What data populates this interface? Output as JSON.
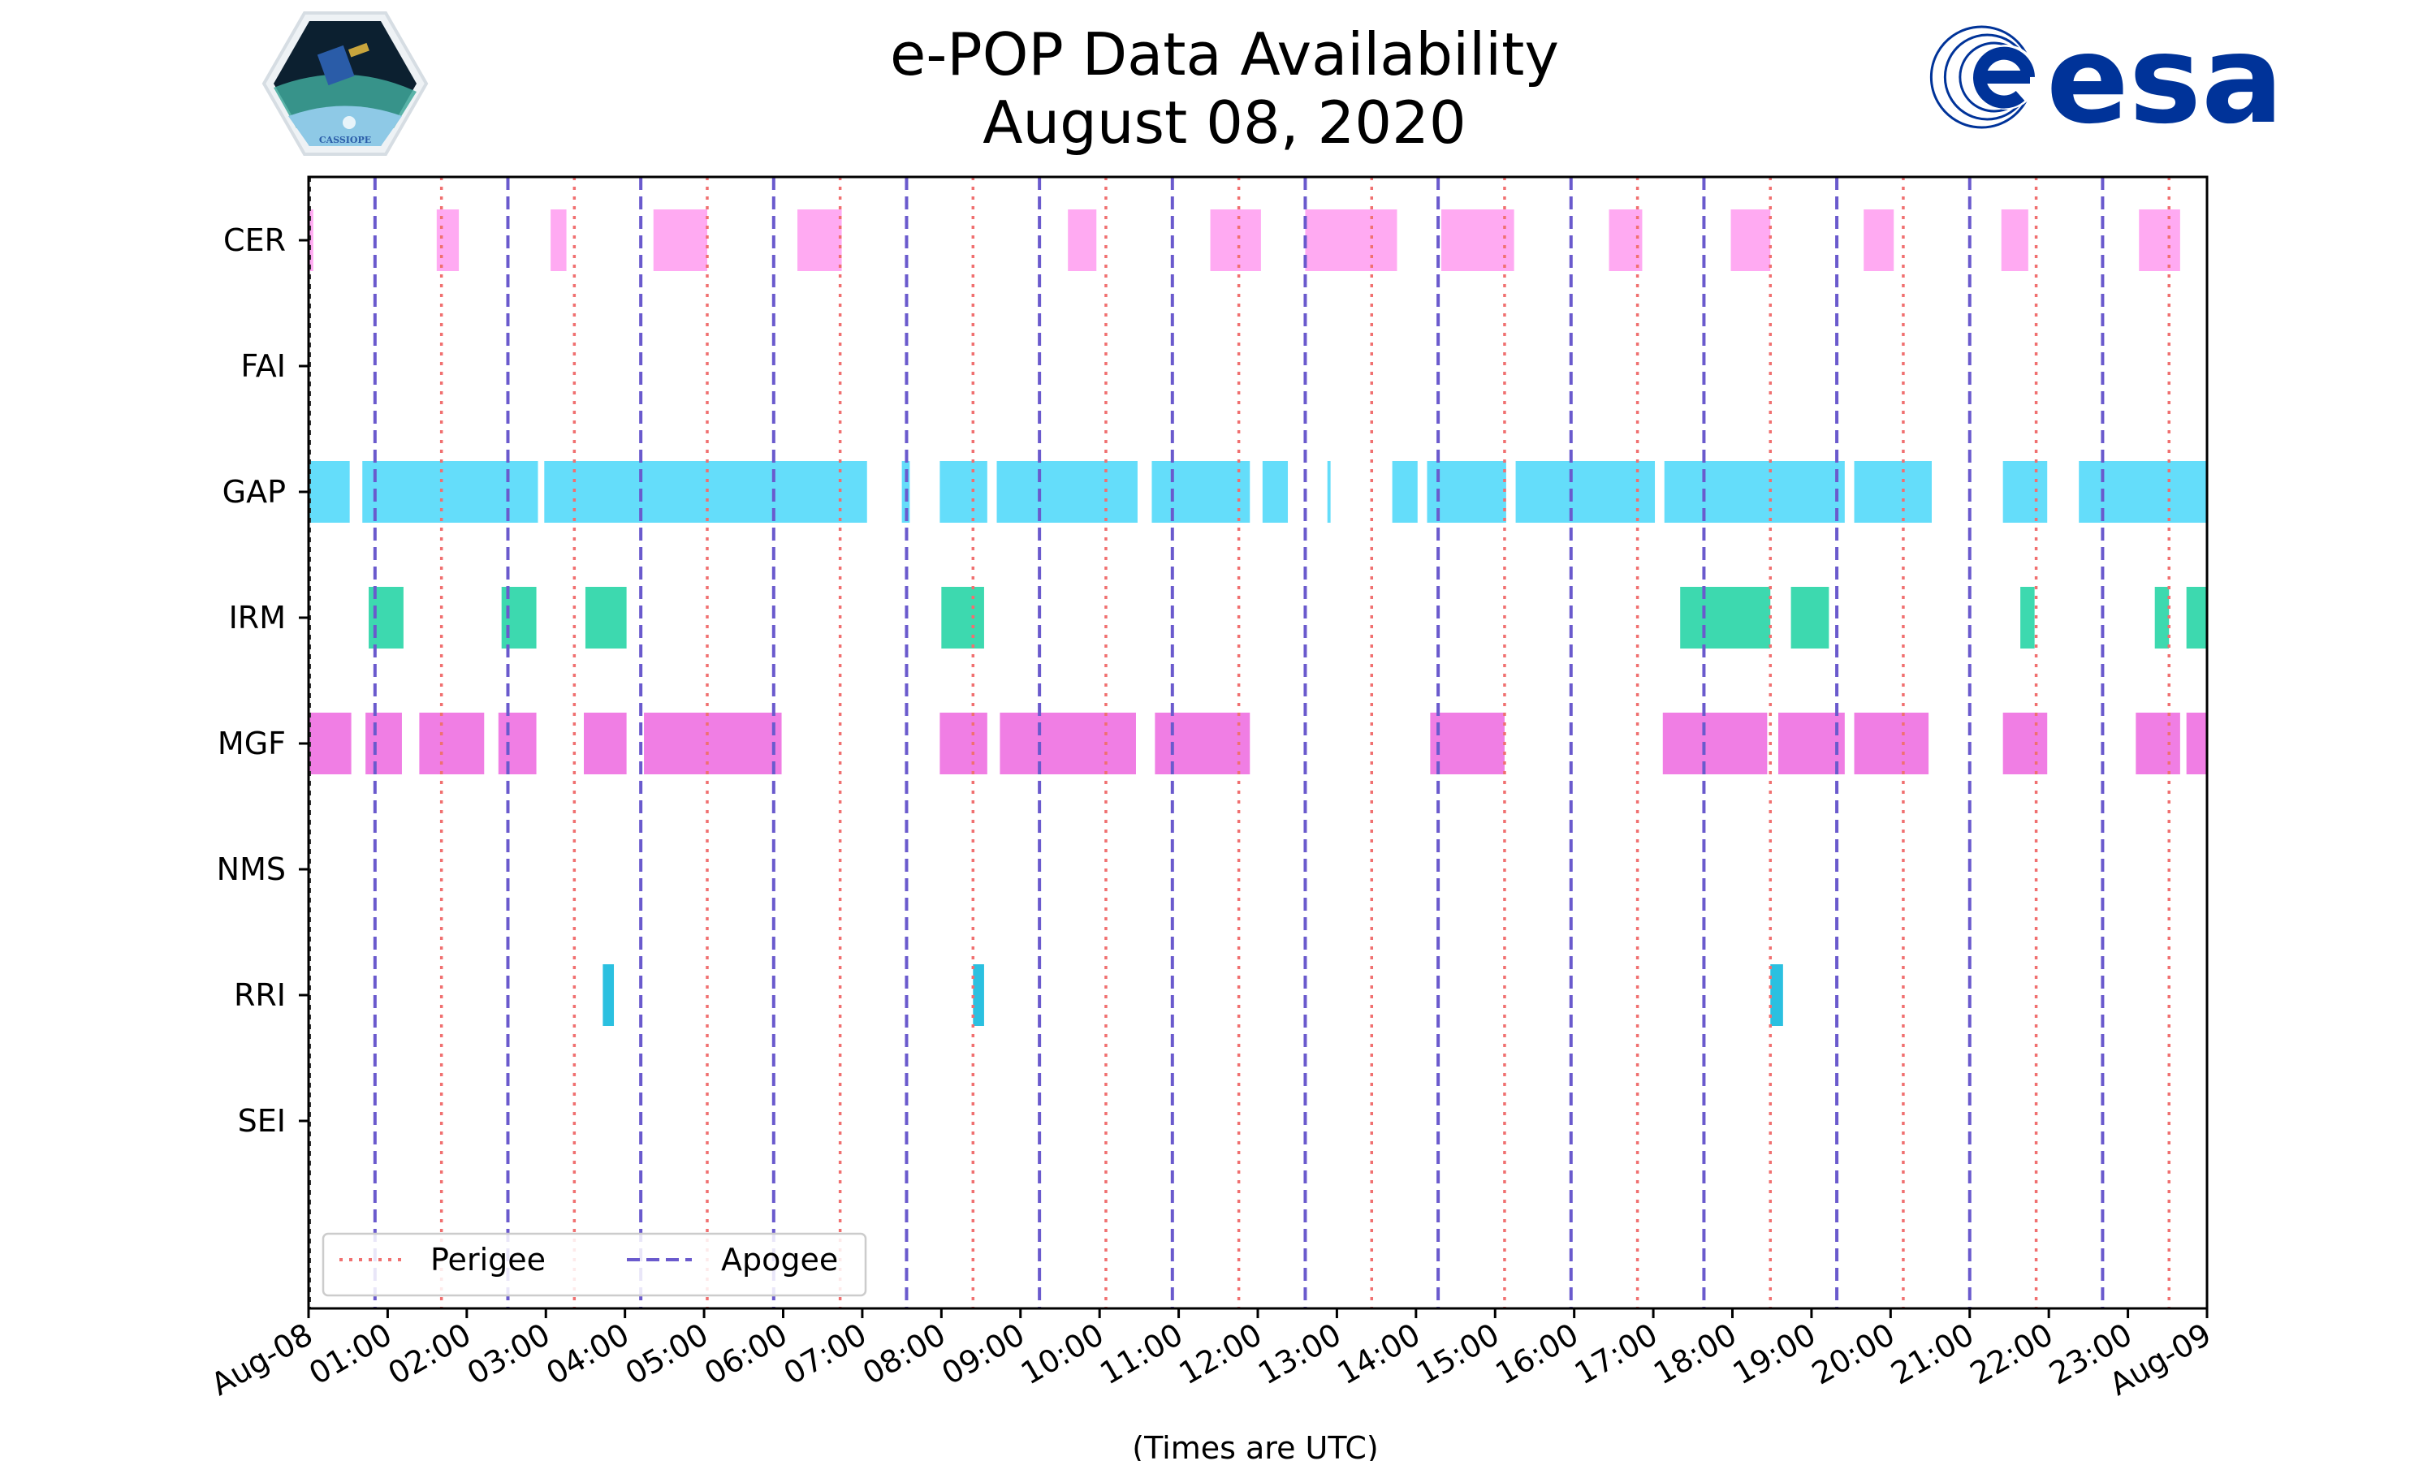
{
  "chart_data": {
    "type": "timeline",
    "title": "e-POP Data Availability",
    "subtitle": "August 08, 2020",
    "xlabel": "(Times are UTC)",
    "xlim": [
      0,
      24
    ],
    "tick_labels": [
      "Aug-08",
      "01:00",
      "02:00",
      "03:00",
      "04:00",
      "05:00",
      "06:00",
      "07:00",
      "08:00",
      "09:00",
      "10:00",
      "11:00",
      "12:00",
      "13:00",
      "14:00",
      "15:00",
      "16:00",
      "17:00",
      "18:00",
      "19:00",
      "20:00",
      "21:00",
      "22:00",
      "23:00",
      "Aug-09"
    ],
    "instruments": [
      "CER",
      "FAI",
      "GAP",
      "IRM",
      "MGF",
      "NMS",
      "RRI",
      "SEI"
    ],
    "perigee_hours": [
      1.68,
      3.36,
      5.04,
      6.72,
      8.4,
      10.08,
      11.76,
      13.44,
      15.12,
      16.8,
      18.48,
      20.16,
      21.84,
      23.52
    ],
    "apogee_hours": [
      0.84,
      2.52,
      4.2,
      5.88,
      7.56,
      9.24,
      10.92,
      12.6,
      14.28,
      15.96,
      17.64,
      19.32,
      21.0,
      22.68
    ],
    "series": [
      {
        "name": "CER",
        "color": "#ffaaf2",
        "intervals": [
          [
            0,
            0.06
          ],
          [
            1.62,
            1.9
          ],
          [
            3.06,
            3.26
          ],
          [
            4.36,
            5.04
          ],
          [
            6.18,
            6.74
          ],
          [
            9.6,
            9.96
          ],
          [
            11.4,
            12.04
          ],
          [
            12.6,
            13.76
          ],
          [
            14.32,
            15.24
          ],
          [
            16.44,
            16.86
          ],
          [
            17.98,
            18.48
          ],
          [
            19.66,
            20.04
          ],
          [
            21.4,
            21.74
          ],
          [
            23.14,
            23.66
          ]
        ]
      },
      {
        "name": "FAI",
        "color": "#9370db",
        "intervals": []
      },
      {
        "name": "GAP",
        "color": "#64ddfa",
        "intervals": [
          [
            0,
            0.52
          ],
          [
            0.68,
            2.9
          ],
          [
            2.98,
            7.06
          ],
          [
            7.5,
            7.6
          ],
          [
            7.98,
            8.58
          ],
          [
            8.7,
            10.48
          ],
          [
            10.66,
            11.9
          ],
          [
            12.06,
            12.38
          ],
          [
            12.88,
            12.92
          ],
          [
            13.7,
            14.02
          ],
          [
            14.14,
            15.14
          ],
          [
            15.26,
            17.02
          ],
          [
            17.14,
            19.42
          ],
          [
            19.54,
            20.52
          ],
          [
            21.42,
            21.98
          ],
          [
            22.38,
            24
          ]
        ]
      },
      {
        "name": "IRM",
        "color": "#3dd9af",
        "intervals": [
          [
            0.76,
            1.2
          ],
          [
            2.44,
            2.88
          ],
          [
            3.5,
            4.02
          ],
          [
            8.0,
            8.54
          ],
          [
            17.34,
            18.48
          ],
          [
            18.74,
            19.22
          ],
          [
            21.64,
            21.82
          ],
          [
            23.34,
            23.52
          ],
          [
            23.74,
            24
          ]
        ]
      },
      {
        "name": "MGF",
        "color": "#f07ee4",
        "intervals": [
          [
            0,
            0.54
          ],
          [
            0.72,
            1.18
          ],
          [
            1.4,
            2.22
          ],
          [
            2.4,
            2.88
          ],
          [
            3.48,
            4.02
          ],
          [
            4.24,
            5.98
          ],
          [
            7.98,
            8.58
          ],
          [
            8.74,
            10.46
          ],
          [
            10.7,
            11.9
          ],
          [
            14.18,
            15.12
          ],
          [
            17.12,
            18.44
          ],
          [
            18.58,
            19.42
          ],
          [
            19.54,
            20.48
          ],
          [
            21.42,
            21.98
          ],
          [
            23.1,
            23.66
          ],
          [
            23.74,
            24
          ]
        ]
      },
      {
        "name": "NMS",
        "color": "#cccccc",
        "intervals": []
      },
      {
        "name": "RRI",
        "color": "#2bc0e0",
        "intervals": [
          [
            3.72,
            3.86
          ],
          [
            8.4,
            8.54
          ],
          [
            18.48,
            18.64
          ]
        ]
      },
      {
        "name": "SEI",
        "color": "#cccccc",
        "intervals": []
      }
    ],
    "legend": [
      {
        "label": "Perigee",
        "style": "dotted",
        "color": "#f07070"
      },
      {
        "label": "Apogee",
        "style": "dashed",
        "color": "#6a5acd"
      }
    ],
    "legend_position": "lower-left"
  },
  "logos": {
    "left_text": "CASSIOPE",
    "right_text": "esa",
    "esa_color": "#003399"
  }
}
